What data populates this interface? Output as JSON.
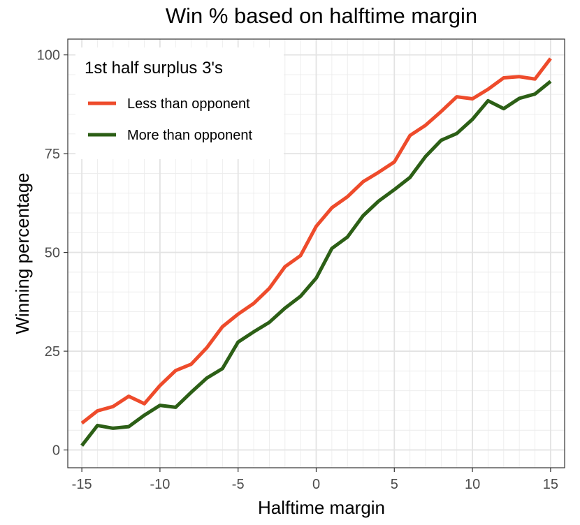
{
  "chart_data": {
    "type": "line",
    "title": "Win % based on halftime margin",
    "xlabel": "Halftime margin",
    "ylabel": "Winning percentage",
    "xlim": [
      -15.9,
      15.9
    ],
    "ylim": [
      -4.5,
      104
    ],
    "x_ticks": [
      -15,
      -10,
      -5,
      0,
      5,
      10,
      15
    ],
    "x_tick_labels": [
      "-15",
      "-10",
      "-5",
      "0",
      "5",
      "10",
      "15"
    ],
    "y_ticks": [
      0,
      25,
      50,
      75,
      100
    ],
    "y_tick_labels": [
      "0",
      "25",
      "50",
      "75",
      "100"
    ],
    "grid": true,
    "legend": {
      "title": "1st half surplus 3's",
      "position": "top-left"
    },
    "x": [
      -15,
      -14,
      -13,
      -12,
      -11,
      -10,
      -9,
      -8,
      -7,
      -6,
      -5,
      -4,
      -3,
      -2,
      -1,
      0,
      1,
      2,
      3,
      4,
      5,
      6,
      7,
      8,
      9,
      10,
      11,
      12,
      13,
      14,
      15
    ],
    "series": [
      {
        "name": "Less than opponent",
        "color": "#ee4b2b",
        "values": [
          6.8,
          9.9,
          11.0,
          13.6,
          11.7,
          16.3,
          20.1,
          21.7,
          25.9,
          31.2,
          34.4,
          37.1,
          40.9,
          46.4,
          49.2,
          56.6,
          61.3,
          64.1,
          67.9,
          70.3,
          72.9,
          79.6,
          82.2,
          85.7,
          89.4,
          88.9,
          91.3,
          94.2,
          94.5,
          93.9,
          99.1
        ]
      },
      {
        "name": "More than opponent",
        "color": "#2c5f16",
        "values": [
          1.1,
          6.2,
          5.5,
          5.9,
          8.8,
          11.3,
          10.8,
          14.6,
          18.2,
          20.6,
          27.3,
          29.9,
          32.3,
          35.9,
          38.9,
          43.5,
          51.0,
          53.9,
          59.3,
          63.0,
          65.9,
          69.0,
          74.3,
          78.4,
          80.1,
          83.7,
          88.4,
          86.4,
          89.0,
          90.1,
          93.3
        ]
      }
    ]
  }
}
